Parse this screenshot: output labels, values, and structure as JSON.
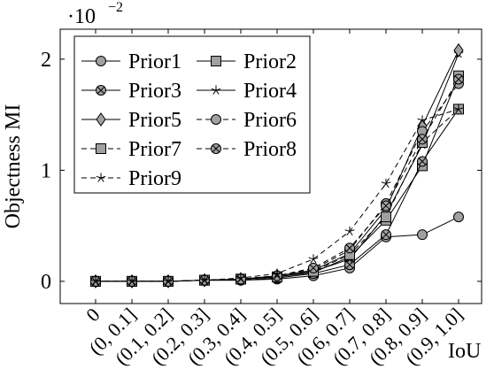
{
  "chart_data": {
    "type": "line",
    "title": "",
    "xlabel": "IoU",
    "ylabel": "Objectness MI",
    "y_scale_label": "·10",
    "y_scale_exponent": "−2",
    "categories": [
      "0",
      "(0, 0.1]",
      "(0.1, 0.2]",
      "(0.2, 0.3]",
      "(0.3, 0.4]",
      "(0.4, 0.5]",
      "(0.5, 0.6]",
      "(0.6, 0.7]",
      "(0.7, 0.8]",
      "(0.8, 0.9]",
      "(0.9, 1.0]"
    ],
    "ylim": [
      -0.2,
      2.27
    ],
    "yticks": [
      0,
      1,
      2
    ],
    "ytick_labels": [
      "0",
      "1",
      "2"
    ],
    "grid": false,
    "legend_position": "top-left",
    "series": [
      {
        "name": "Prior1",
        "marker": "circle",
        "dash": "solid",
        "values": [
          0,
          0,
          0,
          0.01,
          0.01,
          0.02,
          0.05,
          0.12,
          0.4,
          0.42,
          0.58
        ]
      },
      {
        "name": "Prior2",
        "marker": "square",
        "dash": "solid",
        "values": [
          0,
          0,
          0,
          0.01,
          0.02,
          0.04,
          0.08,
          0.22,
          0.55,
          1.04,
          1.85
        ]
      },
      {
        "name": "Prior3",
        "marker": "otimes",
        "dash": "solid",
        "values": [
          0,
          0,
          0,
          0.01,
          0.01,
          0.03,
          0.07,
          0.15,
          0.42,
          1.08,
          1.55
        ]
      },
      {
        "name": "Prior4",
        "marker": "star",
        "dash": "solid",
        "values": [
          0,
          0,
          0,
          0.01,
          0.02,
          0.04,
          0.09,
          0.2,
          0.6,
          1.23,
          2.05
        ]
      },
      {
        "name": "Prior5",
        "marker": "diamond",
        "dash": "solid",
        "values": [
          0,
          0,
          0,
          0.01,
          0.02,
          0.05,
          0.1,
          0.25,
          0.65,
          1.4,
          2.08
        ]
      },
      {
        "name": "Prior6",
        "marker": "circle",
        "dash": "dashed",
        "values": [
          0,
          0,
          0,
          0.01,
          0.02,
          0.05,
          0.11,
          0.28,
          0.7,
          1.35,
          1.78
        ]
      },
      {
        "name": "Prior7",
        "marker": "square",
        "dash": "dashed",
        "values": [
          0,
          0,
          0,
          0.01,
          0.02,
          0.04,
          0.09,
          0.24,
          0.58,
          1.25,
          1.55
        ]
      },
      {
        "name": "Prior8",
        "marker": "otimes",
        "dash": "dashed",
        "values": [
          0,
          0,
          0,
          0.01,
          0.02,
          0.05,
          0.12,
          0.3,
          0.68,
          1.28,
          1.82
        ]
      },
      {
        "name": "Prior9",
        "marker": "star",
        "dash": "dashed",
        "values": [
          0,
          0,
          0,
          0.01,
          0.03,
          0.07,
          0.2,
          0.45,
          0.88,
          1.45,
          1.55
        ]
      }
    ]
  },
  "colors": {
    "line": "#000000",
    "marker_fill": "#a0a0a0",
    "axis": "#000000"
  }
}
